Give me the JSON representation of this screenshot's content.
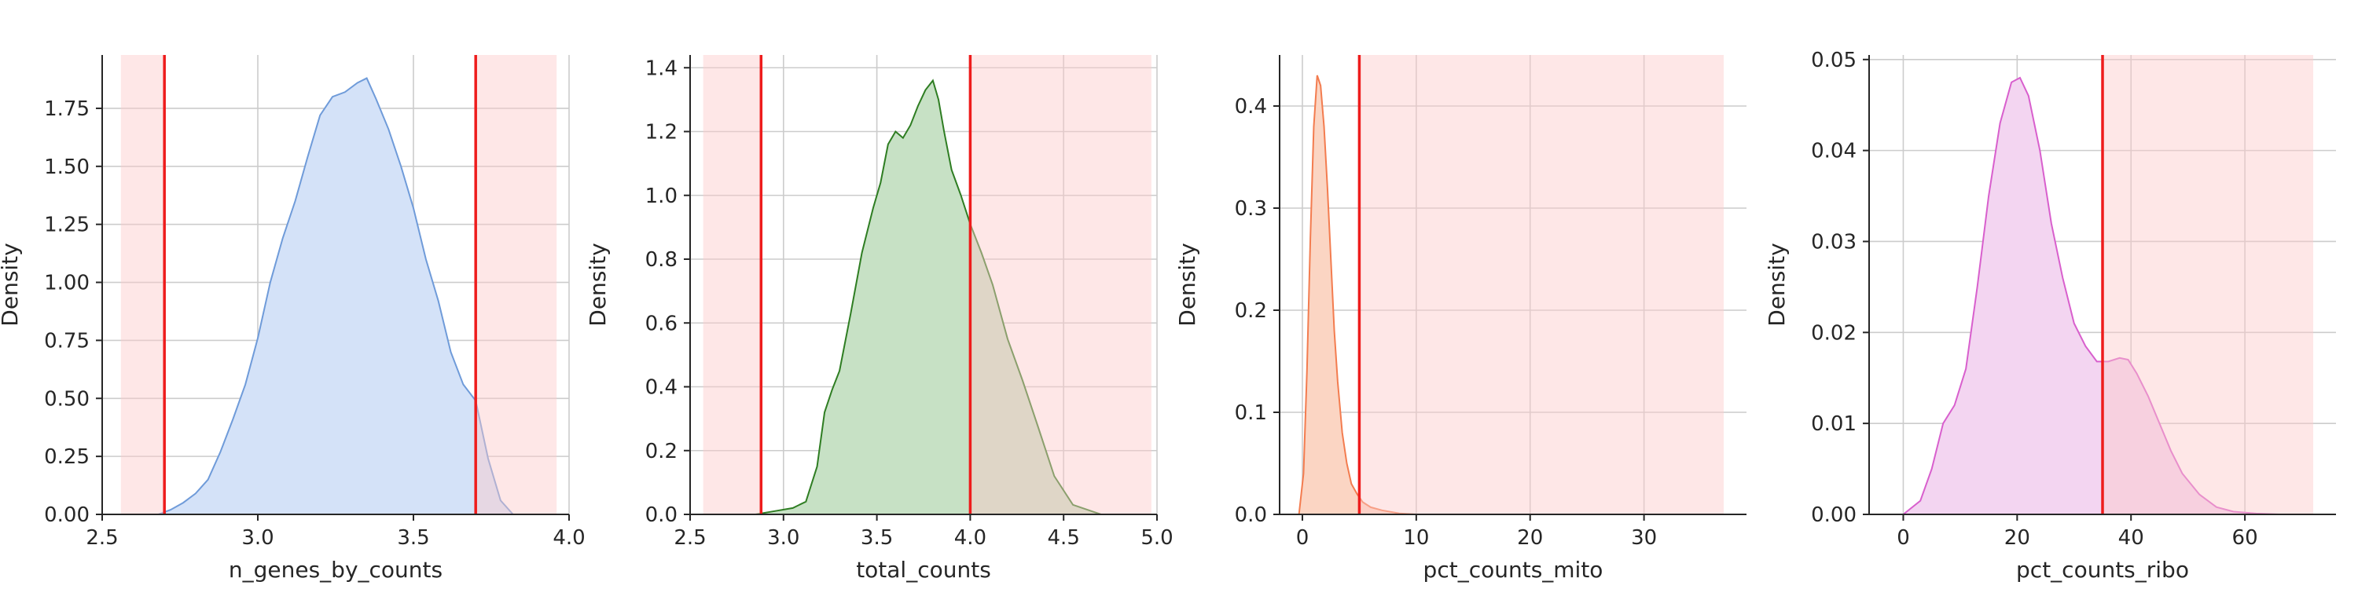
{
  "chart_data": [
    {
      "type": "area",
      "xlabel": "n_genes_by_counts",
      "ylabel": "Density",
      "xlim": [
        2.5,
        4.0
      ],
      "ylim": [
        0,
        1.98
      ],
      "xticks": [
        2.5,
        3.0,
        3.5,
        4.0
      ],
      "xtick_labels": [
        "2.5",
        "3.0",
        "3.5",
        "4.0"
      ],
      "yticks": [
        0,
        0.25,
        0.5,
        0.75,
        1.0,
        1.25,
        1.5,
        1.75
      ],
      "ytick_labels": [
        "0.00",
        "0.25",
        "0.50",
        "0.75",
        "1.00",
        "1.25",
        "1.50",
        "1.75"
      ],
      "grid": true,
      "fill_color": "#d4e2f8",
      "line_color": "#6f9bd9",
      "threshold_color": "#ee1c1c",
      "shade_color": "#fdc9c9",
      "thresholds": [
        2.7,
        3.7
      ],
      "shaded_ranges": [
        [
          2.56,
          2.7
        ],
        [
          3.7,
          3.96
        ]
      ],
      "density": {
        "x": [
          2.68,
          2.72,
          2.76,
          2.8,
          2.84,
          2.88,
          2.92,
          2.96,
          3.0,
          3.04,
          3.08,
          3.12,
          3.16,
          3.2,
          3.24,
          3.28,
          3.32,
          3.35,
          3.38,
          3.42,
          3.46,
          3.5,
          3.54,
          3.58,
          3.62,
          3.66,
          3.7,
          3.74,
          3.78,
          3.82
        ],
        "y": [
          0.0,
          0.02,
          0.05,
          0.09,
          0.15,
          0.27,
          0.41,
          0.56,
          0.76,
          1.0,
          1.19,
          1.35,
          1.54,
          1.72,
          1.8,
          1.82,
          1.86,
          1.88,
          1.79,
          1.66,
          1.5,
          1.32,
          1.1,
          0.92,
          0.7,
          0.56,
          0.49,
          0.24,
          0.06,
          0.0
        ]
      }
    },
    {
      "type": "area",
      "xlabel": "total_counts",
      "ylabel": "Density",
      "xlim": [
        2.5,
        5.0
      ],
      "ylim": [
        0,
        1.44
      ],
      "xticks": [
        2.5,
        3.0,
        3.5,
        4.0,
        4.5,
        5.0
      ],
      "xtick_labels": [
        "2.5",
        "3.0",
        "3.5",
        "4.0",
        "4.5",
        "5.0"
      ],
      "yticks": [
        0,
        0.2,
        0.4,
        0.6,
        0.8,
        1.0,
        1.2,
        1.4
      ],
      "ytick_labels": [
        "0.0",
        "0.2",
        "0.4",
        "0.6",
        "0.8",
        "1.0",
        "1.2",
        "1.4"
      ],
      "grid": true,
      "fill_color": "#c7e1c5",
      "line_color": "#2e7d22",
      "threshold_color": "#ee1c1c",
      "shade_color": "#fdc9c9",
      "thresholds": [
        2.88,
        4.0
      ],
      "shaded_ranges": [
        [
          2.57,
          2.88
        ],
        [
          4.0,
          4.97
        ]
      ],
      "density": {
        "x": [
          2.85,
          2.95,
          3.05,
          3.12,
          3.18,
          3.22,
          3.26,
          3.3,
          3.36,
          3.42,
          3.48,
          3.52,
          3.56,
          3.6,
          3.64,
          3.68,
          3.72,
          3.76,
          3.8,
          3.83,
          3.86,
          3.9,
          3.95,
          4.0,
          4.06,
          4.12,
          4.2,
          4.28,
          4.36,
          4.45,
          4.55,
          4.7
        ],
        "y": [
          0.0,
          0.01,
          0.02,
          0.04,
          0.15,
          0.32,
          0.39,
          0.45,
          0.63,
          0.82,
          0.96,
          1.04,
          1.16,
          1.2,
          1.18,
          1.22,
          1.28,
          1.33,
          1.36,
          1.3,
          1.2,
          1.08,
          1.0,
          0.91,
          0.82,
          0.72,
          0.55,
          0.42,
          0.28,
          0.12,
          0.03,
          0.0
        ]
      }
    },
    {
      "type": "area",
      "xlabel": "pct_counts_mito",
      "ylabel": "Density",
      "xlim": [
        -2,
        39
      ],
      "ylim": [
        0,
        0.45
      ],
      "xticks": [
        0,
        10,
        20,
        30
      ],
      "xtick_labels": [
        "0",
        "10",
        "20",
        "30"
      ],
      "yticks": [
        0,
        0.1,
        0.2,
        0.3,
        0.4
      ],
      "ytick_labels": [
        "0.0",
        "0.1",
        "0.2",
        "0.3",
        "0.4"
      ],
      "grid": true,
      "fill_color": "#fbd5c3",
      "line_color": "#f37c4f",
      "threshold_color": "#ee1c1c",
      "shade_color": "#fdc9c9",
      "thresholds": [
        5
      ],
      "shaded_ranges": [
        [
          5,
          37
        ]
      ],
      "density": {
        "x": [
          -0.3,
          0.1,
          0.4,
          0.7,
          1.0,
          1.3,
          1.6,
          1.9,
          2.2,
          2.5,
          2.8,
          3.1,
          3.5,
          3.9,
          4.3,
          4.8,
          5.3,
          6.0,
          7.0,
          8.5,
          10.0
        ],
        "y": [
          0.0,
          0.04,
          0.14,
          0.27,
          0.38,
          0.43,
          0.42,
          0.38,
          0.32,
          0.25,
          0.18,
          0.13,
          0.08,
          0.05,
          0.03,
          0.02,
          0.012,
          0.007,
          0.004,
          0.001,
          0.0
        ]
      }
    },
    {
      "type": "area",
      "xlabel": "pct_counts_ribo",
      "ylabel": "Density",
      "xlim": [
        -6,
        76
      ],
      "ylim": [
        0,
        0.0505
      ],
      "xticks": [
        0,
        20,
        40,
        60
      ],
      "xtick_labels": [
        "0",
        "20",
        "40",
        "60"
      ],
      "yticks": [
        0,
        0.01,
        0.02,
        0.03,
        0.04,
        0.05
      ],
      "ytick_labels": [
        "0.00",
        "0.01",
        "0.02",
        "0.03",
        "0.04",
        "0.05"
      ],
      "grid": true,
      "fill_color": "#f3d5f1",
      "line_color": "#d85fcd",
      "threshold_color": "#ee1c1c",
      "shade_color": "#fdc9c9",
      "thresholds": [
        35
      ],
      "shaded_ranges": [
        [
          35,
          72
        ]
      ],
      "density": {
        "x": [
          0,
          3,
          5,
          7,
          9,
          11,
          13,
          15,
          17,
          19,
          20.5,
          22,
          24,
          26,
          28,
          30,
          32,
          34,
          36,
          38,
          39.5,
          41,
          43,
          45,
          47,
          49,
          52,
          55,
          58,
          62,
          66
        ],
        "y": [
          0.0,
          0.0015,
          0.005,
          0.01,
          0.012,
          0.016,
          0.025,
          0.035,
          0.043,
          0.0475,
          0.048,
          0.046,
          0.04,
          0.032,
          0.026,
          0.021,
          0.0185,
          0.0168,
          0.0168,
          0.0172,
          0.017,
          0.0155,
          0.013,
          0.01,
          0.007,
          0.0045,
          0.0022,
          0.0008,
          0.0003,
          0.0001,
          0.0
        ]
      }
    }
  ]
}
